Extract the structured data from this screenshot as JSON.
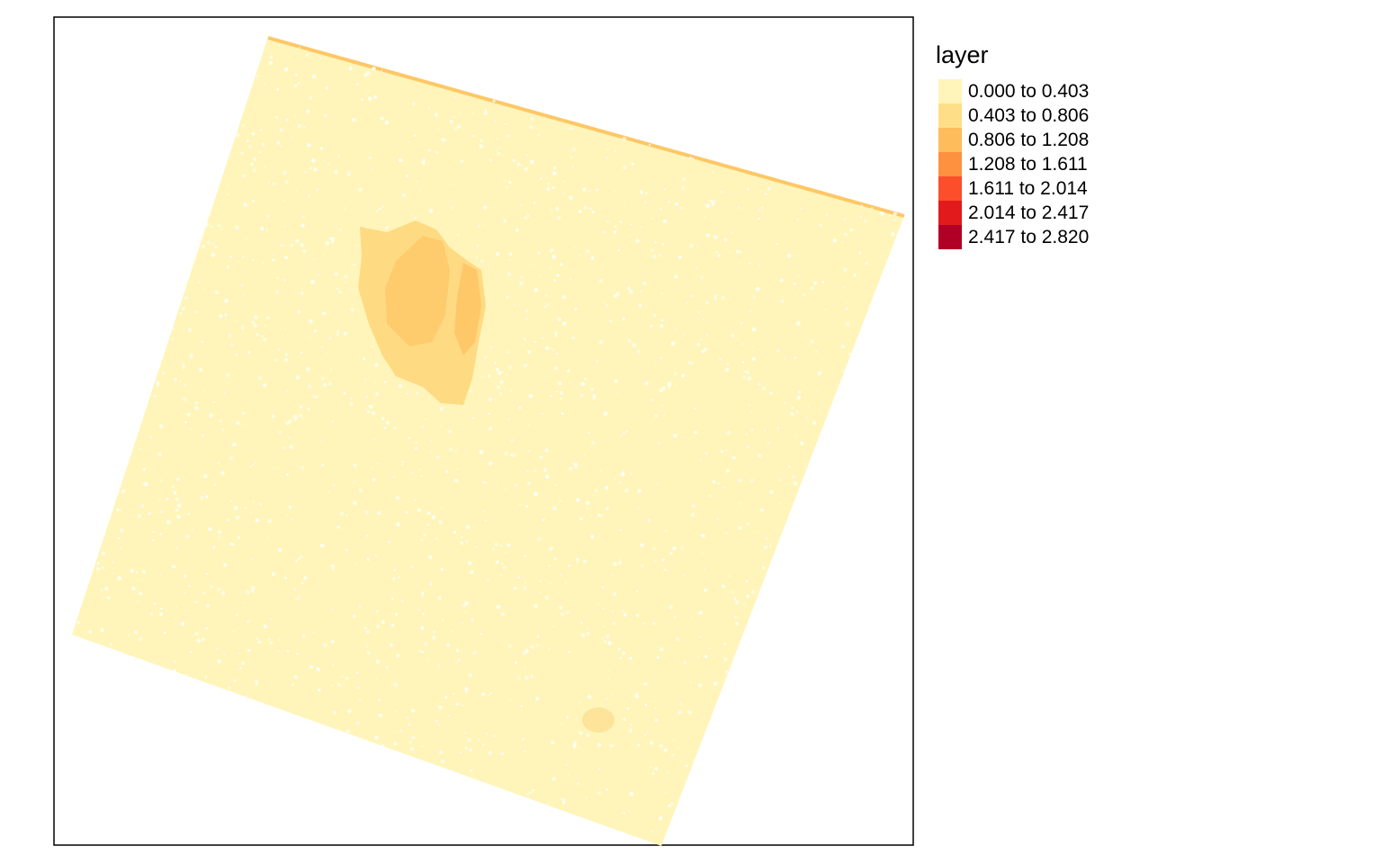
{
  "legend": {
    "title": "layer",
    "items": [
      {
        "label": "0.000 to 0.403",
        "color": "#FFF5BA"
      },
      {
        "label": "0.403 to 0.806",
        "color": "#FEDF88"
      },
      {
        "label": "0.806 to 1.208",
        "color": "#FEBC5B"
      },
      {
        "label": "1.208 to 1.611",
        "color": "#FD9140"
      },
      {
        "label": "1.611 to 2.014",
        "color": "#FC4E2A"
      },
      {
        "label": "2.014 to 2.417",
        "color": "#E31A1C"
      },
      {
        "label": "2.417 to 2.820",
        "color": "#B10026"
      }
    ]
  }
}
